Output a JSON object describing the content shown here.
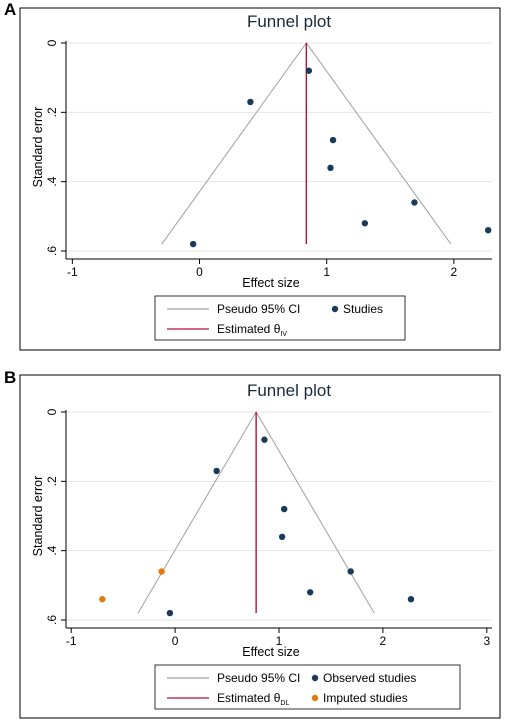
{
  "panels": [
    {
      "letter": "A"
    },
    {
      "letter": "B"
    }
  ],
  "chart_data": [
    {
      "type": "scatter",
      "title": "Funnel plot",
      "xlabel": "Effect size",
      "ylabel": "Standard error",
      "xlim": [
        -1.05,
        2.3
      ],
      "ylim": [
        0,
        0.6
      ],
      "y_reversed": true,
      "x_ticks": [
        "-1",
        "0",
        "1",
        "2"
      ],
      "x_tick_values": [
        -1,
        0,
        1,
        2
      ],
      "y_ticks": [
        "0",
        ".2",
        ".4",
        ".6"
      ],
      "y_tick_values": [
        0,
        0.2,
        0.4,
        0.6
      ],
      "grid": true,
      "legend_position": "bottom",
      "estimate": 0.84,
      "funnel_max_se": 0.58,
      "series": [
        {
          "name": "Studies",
          "type": "scatter",
          "color": "#1a3a5c",
          "x": [
            0.86,
            0.4,
            1.05,
            1.03,
            1.69,
            1.3,
            2.27,
            -0.05
          ],
          "y": [
            0.08,
            0.17,
            0.28,
            0.36,
            0.46,
            0.52,
            0.54,
            0.58
          ]
        }
      ],
      "legend": [
        {
          "label": "Pseudo 95% CI",
          "kind": "line",
          "color": "#a0a0a0"
        },
        {
          "label": "Studies",
          "kind": "dot",
          "color": "#1a3a5c"
        },
        {
          "label": "Estimated θ",
          "sub": "IV",
          "kind": "line",
          "color": "#b5123b"
        }
      ],
      "colors": {
        "funnel": "#a0a0a0",
        "estimate": "#b5123b",
        "grid": "#e6e6e6"
      }
    },
    {
      "type": "scatter",
      "title": "Funnel plot",
      "xlabel": "Effect size",
      "ylabel": "Standard error",
      "xlim": [
        -1.05,
        3.05
      ],
      "ylim": [
        0,
        0.6
      ],
      "y_reversed": true,
      "x_ticks": [
        "-1",
        "0",
        "1",
        "2",
        "3"
      ],
      "x_tick_values": [
        -1,
        0,
        1,
        2,
        3
      ],
      "y_ticks": [
        "0",
        ".2",
        ".4",
        ".6"
      ],
      "y_tick_values": [
        0,
        0.2,
        0.4,
        0.6
      ],
      "grid": true,
      "legend_position": "bottom",
      "estimate": 0.78,
      "funnel_max_se": 0.58,
      "series": [
        {
          "name": "Observed studies",
          "type": "scatter",
          "color": "#1a3a5c",
          "x": [
            0.86,
            0.4,
            1.05,
            1.03,
            1.69,
            1.3,
            2.27,
            -0.05
          ],
          "y": [
            0.08,
            0.17,
            0.28,
            0.36,
            0.46,
            0.52,
            0.54,
            0.58
          ]
        },
        {
          "name": "Imputed studies",
          "type": "scatter",
          "color": "#e07b10",
          "x": [
            -0.13,
            -0.7
          ],
          "y": [
            0.46,
            0.54
          ]
        }
      ],
      "legend": [
        {
          "label": "Pseudo 95% CI",
          "kind": "line",
          "color": "#a0a0a0"
        },
        {
          "label": "Observed studies",
          "kind": "dot",
          "color": "#1a3a5c"
        },
        {
          "label": "Estimated θ",
          "sub": "DL",
          "kind": "line",
          "color": "#b5123b"
        },
        {
          "label": "Imputed studies",
          "kind": "dot",
          "color": "#e07b10"
        }
      ],
      "colors": {
        "funnel": "#a0a0a0",
        "estimate": "#b5123b",
        "grid": "#e6e6e6"
      }
    }
  ]
}
